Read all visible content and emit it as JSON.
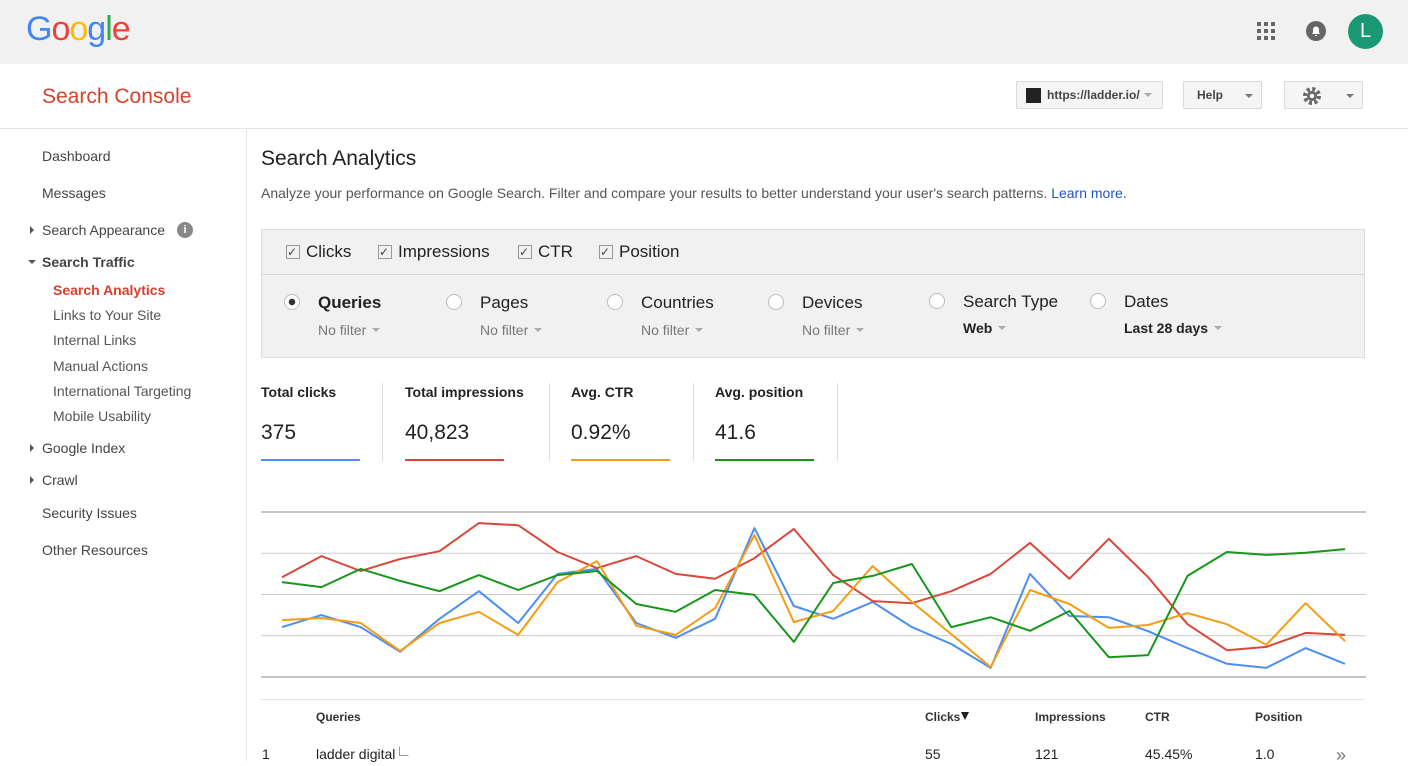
{
  "header": {
    "logo": "Google",
    "avatar": "L"
  },
  "toolbar": {
    "product": "Search Console",
    "site": "https://ladder.io/",
    "help": "Help"
  },
  "nav": [
    "Dashboard",
    "Messages",
    "Search Appearance",
    "Search Traffic",
    "Search Analytics",
    "Links to Your Site",
    "Internal Links",
    "Manual Actions",
    "International Targeting",
    "Mobile Usability",
    "Google Index",
    "Crawl",
    "Security Issues",
    "Other Resources"
  ],
  "page": {
    "title": "Search Analytics",
    "description": "Analyze your performance on Google Search. Filter and compare your results to better understand your user's search patterns.",
    "link": "Learn more."
  },
  "metric_toggles": [
    "Clicks",
    "Impressions",
    "CTR",
    "Position"
  ],
  "dimensions": [
    {
      "name": "Queries",
      "filter": "No filter"
    },
    {
      "name": "Pages",
      "filter": "No filter"
    },
    {
      "name": "Countries",
      "filter": "No filter"
    },
    {
      "name": "Devices",
      "filter": "No filter"
    },
    {
      "name": "Search Type",
      "filter": "Web"
    },
    {
      "name": "Dates",
      "filter": "Last 28 days"
    }
  ],
  "totals": [
    {
      "label": "Total clicks",
      "value": "375"
    },
    {
      "label": "Total impressions",
      "value": "40,823"
    },
    {
      "label": "Avg. CTR",
      "value": "0.92%"
    },
    {
      "label": "Avg. position",
      "value": "41.6"
    }
  ],
  "chart": {
    "type": "line",
    "ylim": [
      0,
      4
    ],
    "yticks": [
      0,
      1,
      2,
      3,
      4
    ],
    "series": [
      {
        "color": "#4d8ef0",
        "values": [
          1.21,
          1.5,
          1.21,
          0.61,
          1.41,
          2.08,
          1.31,
          2.5,
          2.62,
          1.31,
          0.95,
          1.41,
          3.61,
          1.72,
          1.41,
          1.82,
          1.21,
          0.8,
          0.22,
          2.5,
          1.48,
          1.45,
          1.11,
          0.7,
          0.32,
          0.22,
          0.7,
          0.32
        ]
      },
      {
        "color": "#d9473a",
        "values": [
          2.42,
          2.93,
          2.57,
          2.86,
          3.05,
          3.73,
          3.68,
          3.03,
          2.64,
          2.93,
          2.5,
          2.38,
          2.88,
          3.59,
          2.47,
          1.84,
          1.79,
          2.08,
          2.5,
          3.25,
          2.38,
          3.35,
          2.42,
          1.28,
          0.65,
          0.73,
          1.07,
          1.02
        ]
      },
      {
        "color": "#f59d12",
        "values": [
          1.38,
          1.43,
          1.31,
          0.63,
          1.31,
          1.58,
          1.02,
          2.3,
          2.81,
          1.24,
          1.02,
          1.67,
          3.44,
          1.33,
          1.6,
          2.69,
          1.82,
          1.04,
          0.24,
          2.11,
          1.77,
          1.19,
          1.26,
          1.55,
          1.28,
          0.78,
          1.79,
          0.87
        ]
      },
      {
        "color": "#17961c",
        "values": [
          2.3,
          2.18,
          2.62,
          2.33,
          2.08,
          2.47,
          2.11,
          2.47,
          2.57,
          1.77,
          1.58,
          2.11,
          1.99,
          0.85,
          2.28,
          2.45,
          2.74,
          1.21,
          1.45,
          1.12,
          1.6,
          0.48,
          0.53,
          2.45,
          3.03,
          2.96,
          3.01,
          3.1
        ]
      }
    ]
  },
  "table": {
    "header": [
      "Queries",
      "Clicks",
      "Impressions",
      "CTR",
      "Position"
    ],
    "rows": [
      [
        "1",
        "ladder digital",
        "55",
        "121",
        "45.45%",
        "1.0"
      ]
    ]
  }
}
